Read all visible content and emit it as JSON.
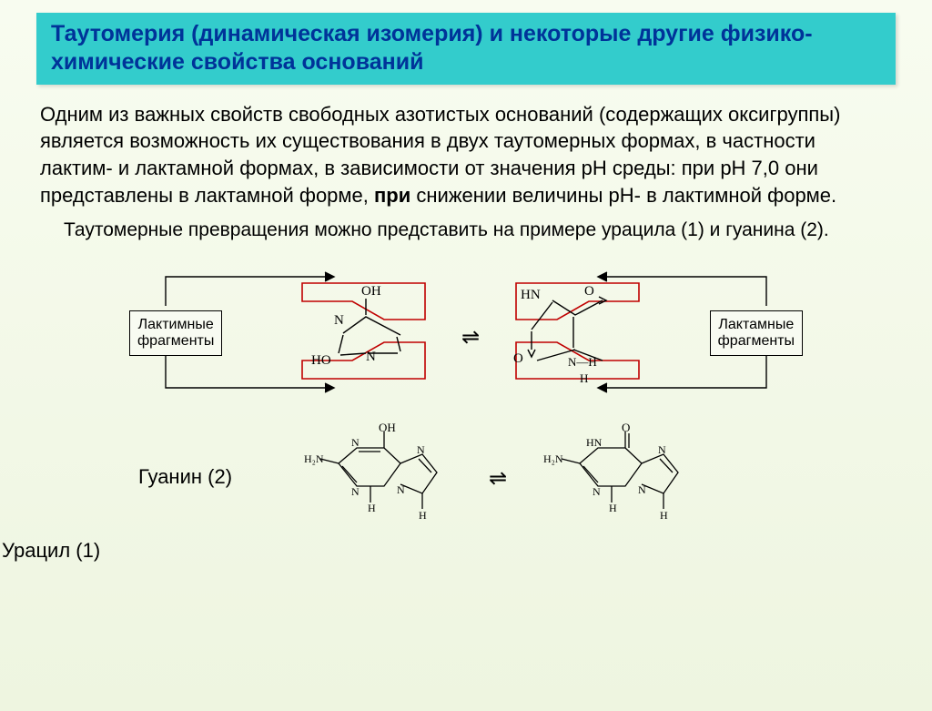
{
  "title": "Таутомерия (динамическая изомерия) и некоторые другие физико-химические свойства оснований",
  "para1_a": "Одним из важных свойств свободных азотистых оснований (содержащих оксигруппы) является возможность их существования в двух таутомерных формах, в частности лактим- и лактамной формах, в зависимости от значения pH среды: при pH 7,0 они представлены в лактамной форме, ",
  "para1_b": "при",
  "para1_c": " снижении величины pH- в лактимной форме.",
  "para2": "Таутомерные превращения можно представить на примере урацила (1) и гуанина (2).",
  "lactam_box": "Лактимные\nфрагменты",
  "lactam_box2": "Лактамные\nфрагменты",
  "uracil_label": "Урацил (1)",
  "guanine_label": "Гуанин (2)",
  "atoms": {
    "OH": "OH",
    "HO": "HO",
    "N": "N",
    "HN": "HN",
    "NH": "N—H",
    "O": "O",
    "H": "H",
    "H2N": "H₂N",
    "NH2": "NH"
  }
}
